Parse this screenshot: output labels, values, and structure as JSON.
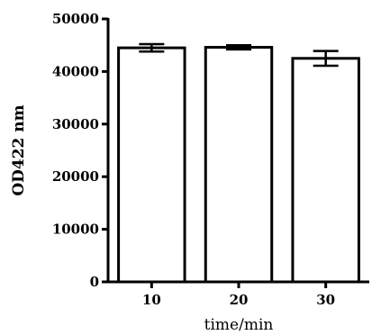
{
  "chart_data": {
    "type": "bar",
    "categories": [
      "10",
      "20",
      "30"
    ],
    "values": [
      44500,
      44600,
      42500
    ],
    "errors": [
      700,
      400,
      1400
    ],
    "xlabel": "time/min",
    "ylabel": "OD422 nm",
    "ylim": [
      0,
      50000
    ],
    "yticks": [
      "0",
      "10000",
      "20000",
      "30000",
      "40000",
      "50000"
    ],
    "grid": false,
    "bar_fill": "#ffffff",
    "bar_stroke": "#000000"
  }
}
